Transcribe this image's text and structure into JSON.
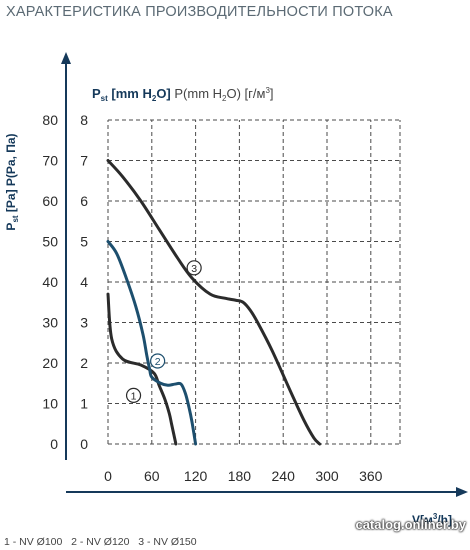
{
  "page": {
    "title": "ХАРАКТЕРИСТИКА ПРОИЗВОДИТЕЛЬНОСТИ ПОТОКА",
    "watermark": "catalog.onliner.by"
  },
  "colors": {
    "axis": "#15395a",
    "grid": "#4a4a4a",
    "text": "#2b2b2b",
    "curve_dark": "#2b2b2b",
    "curve_blue": "#1d4f6e"
  },
  "chart_data": {
    "type": "line",
    "title": "",
    "ylabel_left": "P st [Pa] P(Pa, Па)",
    "ylabel_left_parts": {
      "main": "P",
      "sub": "st",
      "rest": " [Pa] P(Pa, Па)"
    },
    "ylabel_right": "P st [mm H2O] P(mm H2O) [г/м³]",
    "ylabel_right_parts": {
      "main": "P",
      "sub": "st",
      "bold": " [mm H",
      "sub2": "2",
      "bold2": "O]",
      "rest": " P(mm H",
      "sub3": "2",
      "rest2": "O) [г/м",
      "sup": "3",
      "rest3": "]"
    },
    "xlabel": "V[м³/h]",
    "xlabel_parts": {
      "main": "V[м",
      "sup": "3",
      "rest": "/h]"
    },
    "x_ticks": [
      "0",
      "60",
      "120",
      "180",
      "240",
      "300",
      "360"
    ],
    "x_tick_values": [
      0,
      60,
      120,
      180,
      240,
      300,
      360
    ],
    "y_ticks_pa": [
      "0",
      "10",
      "20",
      "30",
      "40",
      "50",
      "60",
      "70",
      "80"
    ],
    "y_ticks_mm": [
      "0",
      "1",
      "2",
      "3",
      "4",
      "5",
      "6",
      "7",
      "8"
    ],
    "y_tick_values": [
      0,
      10,
      20,
      30,
      40,
      50,
      60,
      70,
      80
    ],
    "xlim": [
      0,
      400
    ],
    "ylim": [
      0,
      80
    ],
    "grid": true,
    "series": [
      {
        "name": "1",
        "color": "#2b2b2b",
        "x": [
          0,
          5,
          20,
          45,
          63,
          70,
          78,
          84,
          87,
          90,
          93
        ],
        "y": [
          37,
          26,
          21,
          19.5,
          17.5,
          14.5,
          11,
          7.5,
          5,
          2.5,
          0
        ]
      },
      {
        "name": "2",
        "color": "#1d4f6e",
        "x": [
          0,
          12,
          25,
          38,
          48,
          53,
          57,
          60,
          72,
          82,
          92,
          100,
          106,
          111,
          115,
          120
        ],
        "y": [
          50,
          47,
          41,
          34,
          27,
          22,
          18.5,
          16.5,
          15,
          14.5,
          14.8,
          14.8,
          12.5,
          9,
          5.5,
          0
        ]
      },
      {
        "name": "3",
        "color": "#2b2b2b",
        "x": [
          0,
          20,
          45,
          70,
          95,
          115,
          140,
          160,
          175,
          185,
          195,
          205,
          225,
          250,
          268,
          282,
          290
        ],
        "y": [
          70,
          66,
          60,
          53,
          46,
          41,
          37,
          36,
          35.5,
          35,
          33,
          30,
          23,
          13,
          6,
          1.5,
          0
        ]
      }
    ],
    "annotations": [
      {
        "label": "1",
        "series": "1",
        "x": 35,
        "y": 12
      },
      {
        "label": "2",
        "series": "2",
        "x": 68,
        "y": 20.5
      },
      {
        "label": "3",
        "series": "3",
        "x": 118,
        "y": 43.5
      }
    ],
    "legend_text": "1 - NV Ø100   2 - NV Ø120   3 - NV Ø150"
  }
}
